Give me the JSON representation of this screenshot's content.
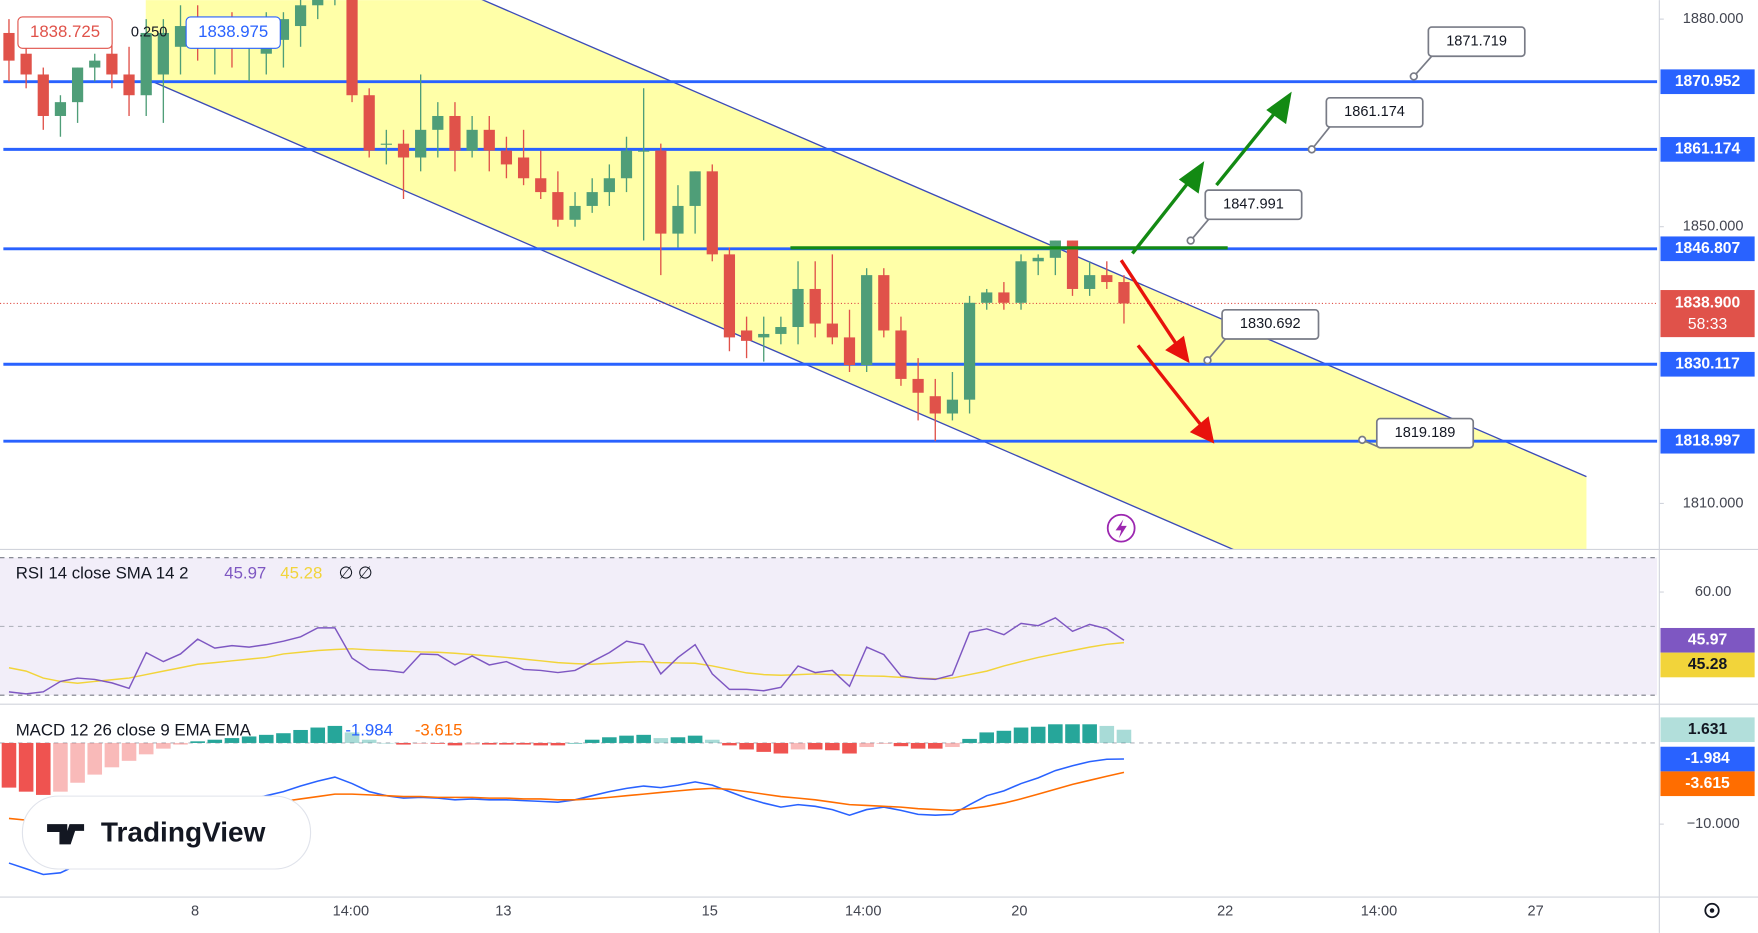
{
  "toolbar": {
    "sell_price": "1838.725",
    "spread": "0.250",
    "buy_price": "1838.975"
  },
  "watermark": "TradingView",
  "chart_data": [
    {
      "type": "candlestick",
      "xlim": [
        -0.523,
        96.08
      ],
      "xticks": [
        {
          "value": 10.85,
          "label": "8"
        },
        {
          "value": 19.93,
          "label": "14:00"
        },
        {
          "value": 28.82,
          "label": "13"
        },
        {
          "value": 40.85,
          "label": "15"
        },
        {
          "value": 49.8,
          "label": "14:00"
        },
        {
          "value": 58.9,
          "label": "20"
        },
        {
          "value": 70.9,
          "label": "22"
        },
        {
          "value": 79.87,
          "label": "14:00"
        },
        {
          "value": 89.0,
          "label": "27"
        }
      ],
      "ylim": [
        1803.35,
        1882.75
      ],
      "yticks": [
        {
          "value": 1880,
          "label": "1880.000"
        },
        {
          "value": 1850,
          "label": "1850.000"
        },
        {
          "value": 1810,
          "label": "1810.000"
        }
      ],
      "up_color": "#4f9e78",
      "down_color": "#e0524a",
      "open": [
        1878,
        1875,
        1872,
        1866,
        1868,
        1873,
        1875,
        1872,
        1869,
        1872,
        1876,
        1880,
        1876,
        1878,
        1876,
        1875,
        1877,
        1879,
        1882,
        1885,
        1890,
        1869,
        1862,
        1862,
        1860,
        1864,
        1866,
        1861,
        1864,
        1861,
        1860,
        1857,
        1855,
        1851,
        1853,
        1855,
        1857,
        1861,
        1861,
        1849,
        1853,
        1858,
        1846,
        1835,
        1834,
        1834.5,
        1835.5,
        1841,
        1836,
        1834,
        1830,
        1843,
        1835,
        1828,
        1825.5,
        1823,
        1825,
        1839,
        1840.5,
        1839,
        1845,
        1845.5,
        1848,
        1841,
        1843,
        1842
      ],
      "high": [
        1880,
        1877,
        1873,
        1869,
        1873,
        1875,
        1877,
        1876,
        1880,
        1880,
        1882,
        1882,
        1880,
        1881,
        1880,
        1881,
        1881,
        1884,
        1886,
        1890,
        1892,
        1870,
        1864,
        1864,
        1872,
        1868,
        1868,
        1866,
        1866,
        1863,
        1864,
        1861,
        1858,
        1855,
        1857,
        1859,
        1863,
        1870,
        1862,
        1856,
        1858,
        1859,
        1847,
        1837,
        1837,
        1837,
        1845,
        1845,
        1846,
        1838,
        1844,
        1844,
        1837,
        1831,
        1828,
        1829,
        1840,
        1841,
        1842,
        1846,
        1846,
        1848,
        1848,
        1845,
        1845,
        1843
      ],
      "low": [
        1871,
        1870,
        1864,
        1863,
        1865,
        1871,
        1870,
        1866,
        1866,
        1865,
        1872,
        1874,
        1872,
        1873,
        1871,
        1872,
        1873,
        1876,
        1880,
        1882,
        1868,
        1860,
        1859,
        1854,
        1858,
        1860,
        1858,
        1860,
        1858,
        1857,
        1856,
        1854,
        1850,
        1850,
        1852,
        1853,
        1855,
        1848,
        1843,
        1847,
        1849,
        1845,
        1832,
        1831,
        1830.5,
        1833,
        1833,
        1834,
        1833,
        1829,
        1829,
        1834,
        1827,
        1822,
        1819,
        1822,
        1823,
        1838,
        1838,
        1838,
        1843,
        1843,
        1840,
        1840,
        1841,
        1836
      ],
      "close": [
        1874,
        1872,
        1866,
        1868,
        1873,
        1874,
        1872,
        1869,
        1878,
        1878,
        1879,
        1876,
        1878,
        1876,
        1878,
        1877,
        1880,
        1882,
        1885,
        1888,
        1869,
        1861,
        1862,
        1860,
        1864,
        1866,
        1861,
        1864,
        1861,
        1859,
        1857,
        1855,
        1851,
        1853,
        1855,
        1857,
        1861,
        1861,
        1849,
        1853,
        1858,
        1846,
        1834,
        1833.5,
        1834.5,
        1835.5,
        1841,
        1836,
        1834,
        1830,
        1843,
        1835,
        1828,
        1826,
        1823,
        1825,
        1839,
        1840.5,
        1839,
        1845,
        1845.5,
        1848,
        1841,
        1843,
        1842,
        1838.9
      ],
      "levels": [
        1870.952,
        1861.174,
        1846.807,
        1830.117,
        1818.997
      ],
      "level_color": "#2962ff",
      "last_price": {
        "value": 1838.9,
        "label": "1838.900"
      },
      "countdown": "58:33",
      "targets": [
        1871.719,
        1861.174,
        1847.991,
        1830.692,
        1819.189
      ]
    },
    {
      "type": "line",
      "title": "RSI 14 close SMA 14 2",
      "status": "∅ ∅",
      "ylim": [
        27.4,
        72.05
      ],
      "yticks": [
        {
          "value": 60,
          "label": "60.00"
        }
      ],
      "band": [
        30,
        70
      ],
      "midline": 50,
      "series": [
        {
          "color": "#7e57c2",
          "values": [
            31,
            30.4,
            31,
            34,
            35,
            34.6,
            33.6,
            32,
            42.4,
            39.8,
            42,
            46.3,
            43.7,
            44.4,
            44,
            44.7,
            45.7,
            47,
            49.6,
            49.6,
            40.8,
            37.5,
            37.2,
            36.6,
            42,
            41.8,
            38.8,
            41.4,
            38.8,
            39.8,
            37.5,
            37.2,
            36.6,
            37.2,
            39.8,
            42.4,
            45.7,
            44.7,
            36.2,
            41,
            44.7,
            36.2,
            31.7,
            31.7,
            31.3,
            32.3,
            38.5,
            36.6,
            37.2,
            32.6,
            44,
            41.8,
            35.6,
            34.9,
            34.6,
            35.9,
            48.3,
            49.3,
            47.6,
            50.9,
            50.2,
            52.5,
            48.6,
            50.6,
            49.3,
            45.97
          ]
        },
        {
          "color": "#f2d43a",
          "values": [
            38,
            37,
            35,
            34,
            33.5,
            34,
            34.5,
            35,
            36,
            37,
            38,
            39,
            39.5,
            40,
            40.5,
            41,
            42,
            42.5,
            43,
            43.3,
            43.5,
            43.2,
            43,
            42.8,
            42.6,
            42.5,
            42.2,
            41.8,
            41.4,
            41,
            40.5,
            40,
            39.5,
            39.2,
            39,
            39.3,
            39.6,
            39.8,
            39.5,
            39.4,
            39.3,
            38.5,
            37.5,
            36.5,
            36,
            35.8,
            36,
            36.2,
            36,
            35.8,
            35.6,
            35.5,
            35.2,
            35,
            34.8,
            35,
            36,
            37,
            38.5,
            39.8,
            41,
            42,
            43,
            44,
            44.8,
            45.28
          ]
        }
      ]
    },
    {
      "type": "macd",
      "title": "MACD 12 26 close 9 EMA EMA",
      "ylim": [
        -18.98,
        4.5
      ],
      "yticks": [
        {
          "value": -10,
          "label": "−10.000"
        }
      ],
      "histogram": {
        "up_color": "#26a69a",
        "down_color": "#ef5350",
        "values": [
          -5.5,
          -6,
          -6.4,
          -6,
          -4.9,
          -3.9,
          -3,
          -2.2,
          -1.4,
          -0.7,
          -0.2,
          0.2,
          0.4,
          0.6,
          0.8,
          1,
          1.2,
          1.6,
          1.9,
          2.1,
          1.3,
          0.4,
          0,
          -0.2,
          -0.1,
          -0.1,
          -0.3,
          -0.2,
          -0.2,
          -0.2,
          -0.2,
          -0.3,
          -0.3,
          0,
          0.4,
          0.7,
          0.9,
          1,
          0.6,
          0.7,
          0.9,
          0.4,
          -0.3,
          -0.8,
          -1.1,
          -1.3,
          -0.8,
          -0.8,
          -0.9,
          -1.3,
          -0.5,
          -0.1,
          -0.4,
          -0.7,
          -0.7,
          -0.5,
          0.5,
          1.3,
          1.5,
          1.9,
          2,
          2.3,
          2.3,
          2.3,
          2.1,
          1.631
        ]
      },
      "series": [
        {
          "color": "#2962ff",
          "values": [
            -14.8,
            -15.5,
            -16.2,
            -16,
            -15,
            -14,
            -13,
            -12,
            -11,
            -10,
            -9.2,
            -8.5,
            -8,
            -7.5,
            -7,
            -6.5,
            -6,
            -5.3,
            -4.7,
            -4.2,
            -5,
            -6,
            -6.5,
            -6.8,
            -6.7,
            -6.8,
            -7,
            -6.9,
            -7,
            -7,
            -7.1,
            -7.2,
            -7.3,
            -7,
            -6.5,
            -6,
            -5.6,
            -5.3,
            -5.5,
            -5.2,
            -4.8,
            -5.2,
            -6,
            -6.8,
            -7.4,
            -7.9,
            -7.6,
            -7.8,
            -8.2,
            -8.9,
            -8.2,
            -7.9,
            -8.3,
            -8.8,
            -8.9,
            -8.8,
            -7.6,
            -6.5,
            -5.9,
            -5,
            -4.3,
            -3.4,
            -2.8,
            -2.3,
            -2,
            -1.984
          ]
        },
        {
          "color": "#ff6d00",
          "values": [
            -9.3,
            -9.5,
            -9.8,
            -10,
            -10.1,
            -10.1,
            -10,
            -9.8,
            -9.6,
            -9.3,
            -9,
            -8.7,
            -8.4,
            -8.1,
            -7.8,
            -7.5,
            -7.2,
            -6.9,
            -6.6,
            -6.3,
            -6.3,
            -6.4,
            -6.5,
            -6.6,
            -6.6,
            -6.7,
            -6.7,
            -6.7,
            -6.8,
            -6.8,
            -6.9,
            -6.9,
            -7,
            -7,
            -6.9,
            -6.7,
            -6.5,
            -6.3,
            -6.1,
            -5.9,
            -5.7,
            -5.6,
            -5.7,
            -6,
            -6.3,
            -6.6,
            -6.8,
            -7,
            -7.3,
            -7.6,
            -7.7,
            -7.8,
            -7.9,
            -8.1,
            -8.2,
            -8.3,
            -8.1,
            -7.8,
            -7.4,
            -6.9,
            -6.3,
            -5.7,
            -5.1,
            -4.6,
            -4.1,
            -3.615
          ]
        }
      ]
    }
  ]
}
